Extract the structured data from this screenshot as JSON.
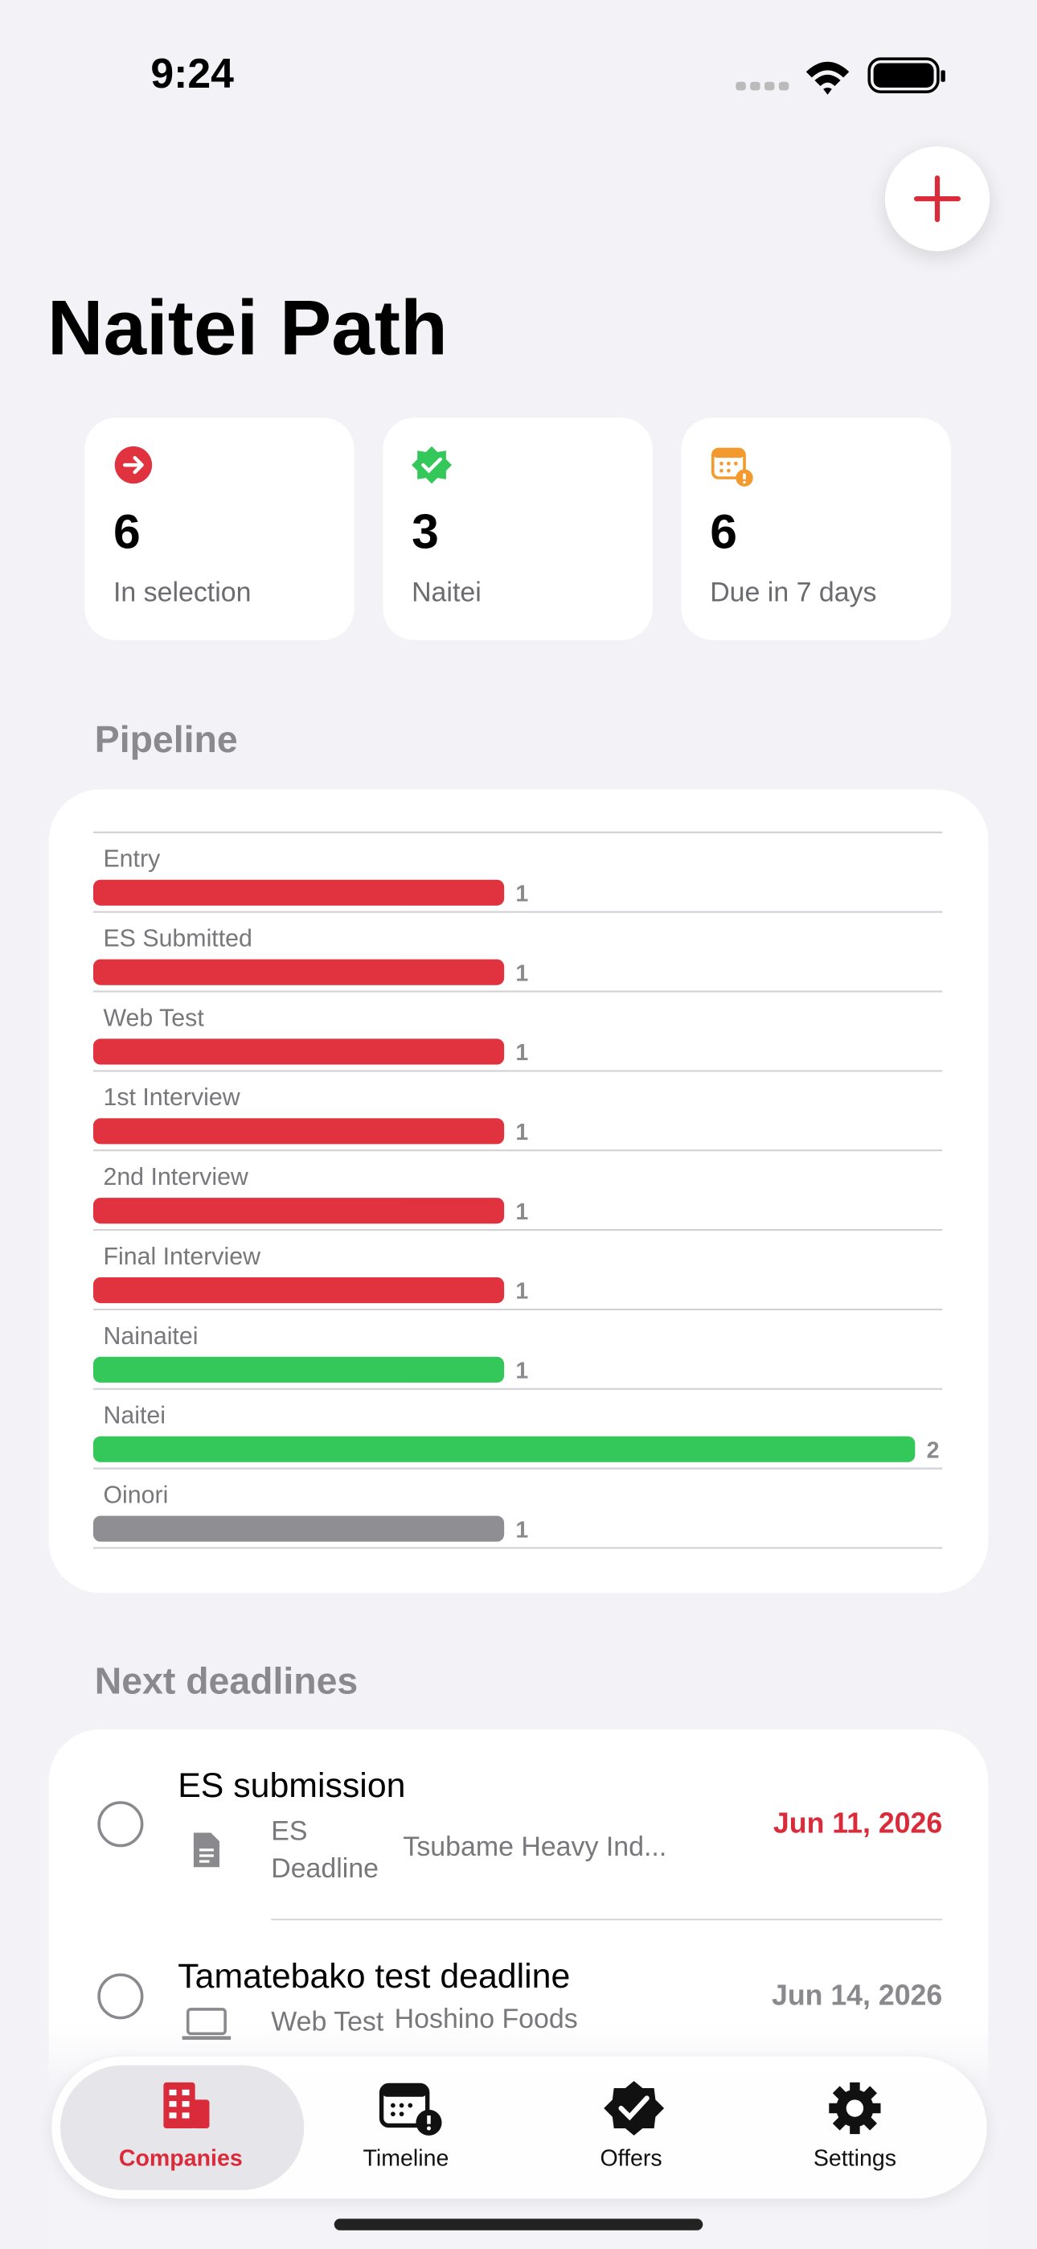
{
  "status_bar": {
    "time": "9:24"
  },
  "header": {
    "title": "Naitei Path"
  },
  "stats": [
    {
      "value": "6",
      "label": "In selection"
    },
    {
      "value": "3",
      "label": "Naitei"
    },
    {
      "value": "6",
      "label": "Due in 7 days"
    }
  ],
  "pipeline": {
    "heading": "Pipeline",
    "chart_data": {
      "type": "bar",
      "orientation": "horizontal",
      "categories": [
        "Entry",
        "ES Submitted",
        "Web Test",
        "1st Interview",
        "2nd Interview",
        "Final Interview",
        "Nainaitei",
        "Naitei",
        "Oinori"
      ],
      "values": [
        1,
        1,
        1,
        1,
        1,
        1,
        1,
        2,
        1
      ],
      "colors": [
        "#e0323f",
        "#e0323f",
        "#e0323f",
        "#e0323f",
        "#e0323f",
        "#e0323f",
        "#34c759",
        "#34c759",
        "#8e8e93"
      ],
      "xlim": [
        0,
        2
      ]
    }
  },
  "deadlines": {
    "heading": "Next deadlines",
    "items": [
      {
        "title": "ES submission",
        "type": "ES Deadline",
        "company": "Tsubame Heavy Ind...",
        "date": "Jun 11, 2026",
        "date_color": "#d92b3a"
      },
      {
        "title": "Tamatebako test deadline",
        "type": "Web Test",
        "company": "Hoshino Foods",
        "date": "Jun 14, 2026",
        "date_color": "#8a8a8e"
      }
    ]
  },
  "tab_bar": {
    "tabs": [
      "Companies",
      "Timeline",
      "Offers",
      "Settings"
    ],
    "selected": 0
  }
}
